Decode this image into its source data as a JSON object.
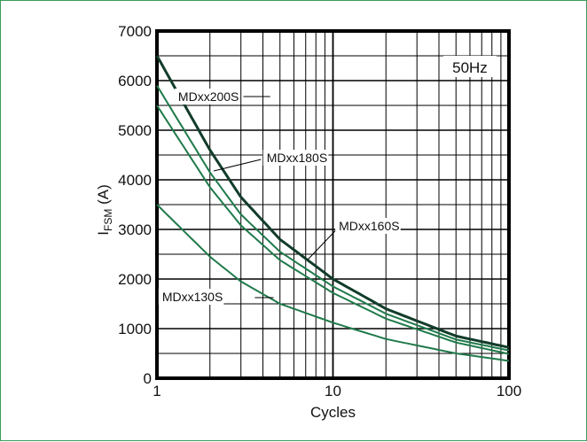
{
  "chart_data": {
    "type": "line",
    "xscale": "log",
    "xlim": [
      1,
      100
    ],
    "ylim": [
      0,
      7000
    ],
    "x_ticks": [
      "1",
      "10",
      "100"
    ],
    "y_ticks": [
      "0",
      "1000",
      "2000",
      "3000",
      "4000",
      "5000",
      "6000",
      "7000"
    ],
    "xlabel": "Cycles",
    "ylabel": {
      "main": "I",
      "sub": "FSM",
      "unit": " (A)"
    },
    "annotation": "50Hz",
    "grid": true,
    "colors": {
      "curve": "#1f7a4a",
      "curve_dark": "#123c2a",
      "frame": "#3c9a5a",
      "grid": "#000000"
    },
    "series": [
      {
        "name": "MDxx200S",
        "x": [
          1,
          2,
          3,
          5,
          10,
          20,
          50,
          100
        ],
        "y": [
          6500,
          4600,
          3650,
          2800,
          2000,
          1400,
          850,
          620
        ]
      },
      {
        "name": "MDxx180S",
        "x": [
          1,
          2,
          3,
          5,
          10,
          20,
          50,
          100
        ],
        "y": [
          5900,
          4150,
          3300,
          2550,
          1850,
          1300,
          780,
          560
        ]
      },
      {
        "name": "MDxx160S",
        "x": [
          1,
          2,
          3,
          5,
          10,
          20,
          50,
          100
        ],
        "y": [
          5500,
          3850,
          3080,
          2380,
          1720,
          1200,
          720,
          490
        ]
      },
      {
        "name": "MDxx130S",
        "x": [
          1,
          2,
          3,
          5,
          10,
          20,
          50,
          100
        ],
        "y": [
          3500,
          2450,
          1950,
          1500,
          1120,
          790,
          500,
          350
        ]
      }
    ]
  }
}
